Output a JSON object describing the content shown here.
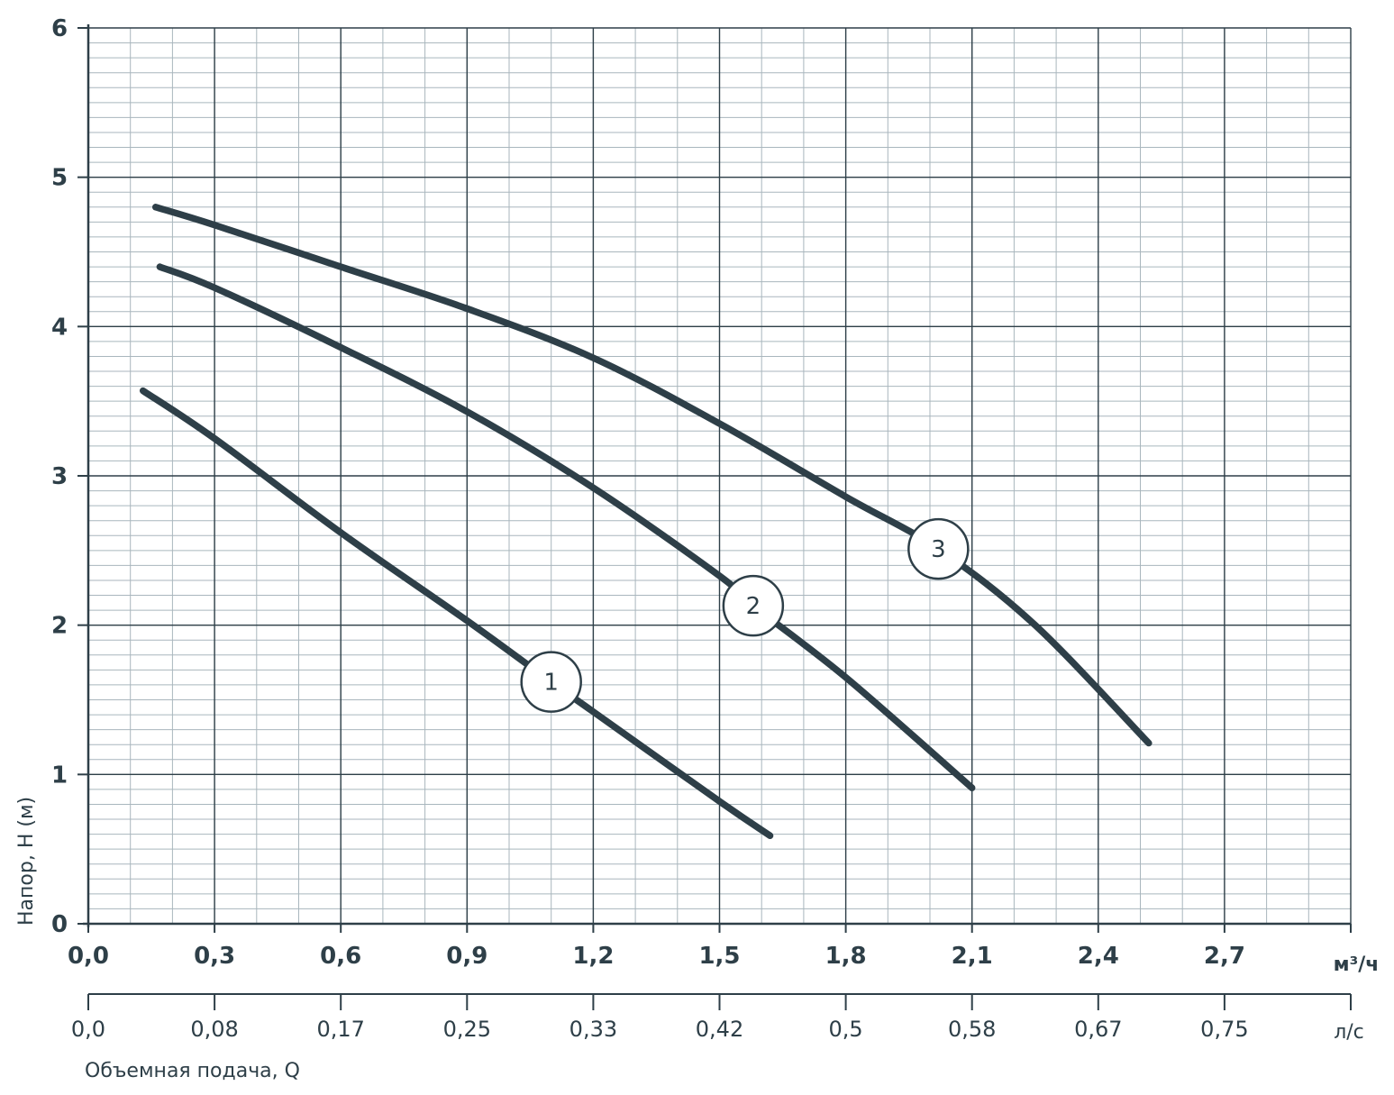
{
  "chart_data": {
    "type": "line",
    "title": "",
    "xlabel": "Объемная подача, Q",
    "ylabel": "Напор, H (м)",
    "x_unit": "м³/ч",
    "x2_unit": "л/с",
    "xlim": [
      0,
      3.0
    ],
    "ylim": [
      0,
      6
    ],
    "x_ticks": [
      "0,0",
      "0,3",
      "0,6",
      "0,9",
      "1,2",
      "1,5",
      "1,8",
      "2,1",
      "2,4",
      "2,7"
    ],
    "x2_ticks": [
      "0,0",
      "0,08",
      "0,17",
      "0,25",
      "0,33",
      "0,42",
      "0,5",
      "0,58",
      "0,67",
      "0,75"
    ],
    "y_ticks": [
      "0",
      "1",
      "2",
      "3",
      "4",
      "5",
      "6"
    ],
    "grid": true,
    "minor_grid": true,
    "series": [
      {
        "name": "1",
        "x": [
          0.13,
          0.3,
          0.6,
          0.9,
          1.1,
          1.2,
          1.5,
          1.62
        ],
        "y": [
          3.57,
          3.25,
          2.62,
          2.03,
          1.62,
          1.42,
          0.82,
          0.59
        ]
      },
      {
        "name": "2",
        "x": [
          0.17,
          0.3,
          0.6,
          0.9,
          1.2,
          1.5,
          1.58,
          1.8,
          2.1
        ],
        "y": [
          4.4,
          4.26,
          3.86,
          3.43,
          2.92,
          2.33,
          2.13,
          1.65,
          0.91
        ]
      },
      {
        "name": "3",
        "x": [
          0.16,
          0.3,
          0.6,
          0.9,
          1.2,
          1.5,
          1.8,
          2.02,
          2.25,
          2.52
        ],
        "y": [
          4.8,
          4.68,
          4.4,
          4.12,
          3.79,
          3.35,
          2.86,
          2.51,
          2.0,
          1.21
        ]
      }
    ]
  },
  "colors": {
    "curve": "#2e3f48",
    "major_grid": "#2e3f48",
    "minor_grid": "#a9b6bd",
    "axis": "#2e3f48",
    "text": "#2e3f48"
  }
}
